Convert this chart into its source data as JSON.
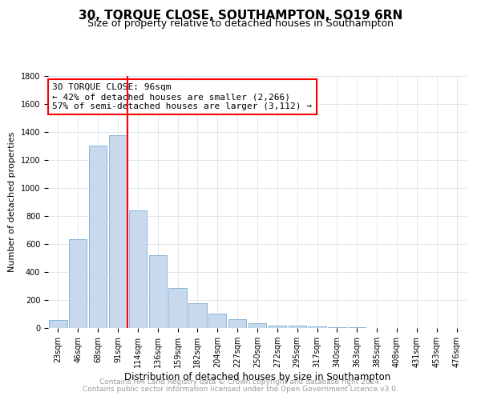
{
  "title": "30, TORQUE CLOSE, SOUTHAMPTON, SO19 6RN",
  "subtitle": "Size of property relative to detached houses in Southampton",
  "xlabel": "Distribution of detached houses by size in Southampton",
  "ylabel": "Number of detached properties",
  "footnote1": "Contains HM Land Registry data © Crown copyright and database right 2024.",
  "footnote2": "Contains public sector information licensed under the Open Government Licence v3.0.",
  "bins": [
    "23sqm",
    "46sqm",
    "68sqm",
    "91sqm",
    "114sqm",
    "136sqm",
    "159sqm",
    "182sqm",
    "204sqm",
    "227sqm",
    "250sqm",
    "272sqm",
    "295sqm",
    "317sqm",
    "340sqm",
    "363sqm",
    "385sqm",
    "408sqm",
    "431sqm",
    "453sqm",
    "476sqm"
  ],
  "values": [
    55,
    635,
    1305,
    1375,
    840,
    520,
    285,
    175,
    105,
    65,
    35,
    20,
    15,
    10,
    5,
    3,
    2,
    1,
    1,
    0,
    0
  ],
  "bar_color": "#c8d9ee",
  "bar_edge_color": "#7aadd4",
  "vline_x_index": 3.5,
  "vline_color": "red",
  "annotation_box_text": "30 TORQUE CLOSE: 96sqm\n← 42% of detached houses are smaller (2,266)\n57% of semi-detached houses are larger (3,112) →",
  "ylim": [
    0,
    1800
  ],
  "yticks": [
    0,
    200,
    400,
    600,
    800,
    1000,
    1200,
    1400,
    1600,
    1800
  ],
  "title_fontsize": 11,
  "subtitle_fontsize": 9,
  "xlabel_fontsize": 8.5,
  "ylabel_fontsize": 8,
  "tick_fontsize": 7,
  "annot_fontsize": 8,
  "footnote_fontsize": 6.5,
  "background_color": "#ffffff",
  "grid_color": "#dde8f0"
}
